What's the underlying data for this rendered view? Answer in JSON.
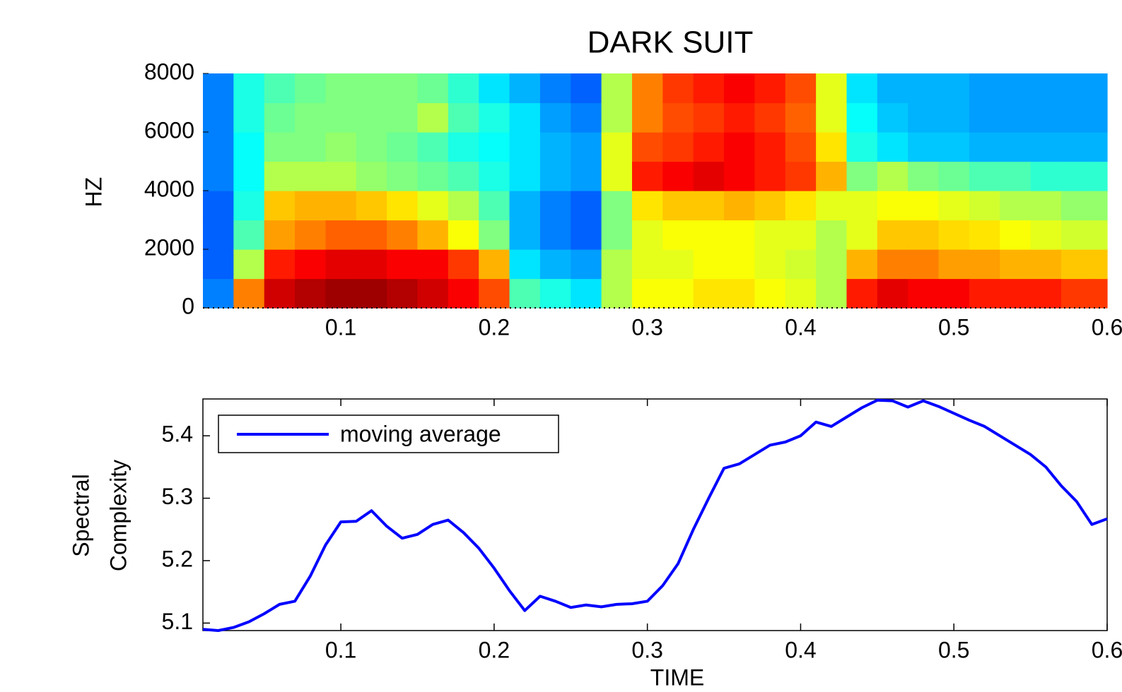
{
  "chart_data": [
    {
      "type": "heatmap",
      "title": "DARK SUIT",
      "ylabel": "HZ",
      "colormap": "jet",
      "zlim": [
        0,
        1
      ],
      "x_bins": [
        0.01,
        0.03,
        0.05,
        0.07,
        0.09,
        0.11,
        0.13,
        0.15,
        0.17,
        0.19,
        0.21,
        0.23,
        0.25,
        0.27,
        0.29,
        0.31,
        0.33,
        0.35,
        0.37,
        0.39,
        0.41,
        0.43,
        0.45,
        0.47,
        0.49,
        0.51,
        0.53,
        0.55,
        0.57,
        0.59,
        0.6
      ],
      "y_bins": [
        0,
        1000,
        2000,
        3000,
        4000,
        5000,
        6000,
        7000,
        8000
      ],
      "z": [
        [
          0.25,
          0.22,
          0.22,
          0.22,
          0.25,
          0.25,
          0.25,
          0.25
        ],
        [
          0.75,
          0.55,
          0.45,
          0.4,
          0.38,
          0.38,
          0.4,
          0.4
        ],
        [
          0.92,
          0.85,
          0.72,
          0.68,
          0.55,
          0.5,
          0.48,
          0.45
        ],
        [
          0.95,
          0.88,
          0.75,
          0.7,
          0.55,
          0.5,
          0.5,
          0.48
        ],
        [
          0.97,
          0.9,
          0.78,
          0.7,
          0.55,
          0.52,
          0.5,
          0.5
        ],
        [
          0.97,
          0.9,
          0.78,
          0.68,
          0.52,
          0.5,
          0.5,
          0.5
        ],
        [
          0.95,
          0.88,
          0.75,
          0.65,
          0.5,
          0.48,
          0.5,
          0.5
        ],
        [
          0.92,
          0.88,
          0.7,
          0.6,
          0.48,
          0.45,
          0.55,
          0.48
        ],
        [
          0.88,
          0.82,
          0.62,
          0.55,
          0.45,
          0.4,
          0.45,
          0.42
        ],
        [
          0.8,
          0.7,
          0.5,
          0.45,
          0.4,
          0.38,
          0.4,
          0.35
        ],
        [
          0.45,
          0.35,
          0.3,
          0.3,
          0.35,
          0.35,
          0.35,
          0.3
        ],
        [
          0.4,
          0.3,
          0.25,
          0.25,
          0.3,
          0.3,
          0.28,
          0.25
        ],
        [
          0.35,
          0.28,
          0.22,
          0.22,
          0.28,
          0.28,
          0.25,
          0.22
        ],
        [
          0.55,
          0.55,
          0.5,
          0.5,
          0.6,
          0.6,
          0.55,
          0.55
        ],
        [
          0.62,
          0.6,
          0.6,
          0.65,
          0.85,
          0.8,
          0.75,
          0.75
        ],
        [
          0.62,
          0.6,
          0.62,
          0.68,
          0.88,
          0.82,
          0.8,
          0.82
        ],
        [
          0.65,
          0.62,
          0.62,
          0.68,
          0.9,
          0.85,
          0.82,
          0.85
        ],
        [
          0.65,
          0.62,
          0.62,
          0.7,
          0.88,
          0.88,
          0.85,
          0.88
        ],
        [
          0.62,
          0.6,
          0.6,
          0.68,
          0.85,
          0.85,
          0.82,
          0.85
        ],
        [
          0.6,
          0.58,
          0.6,
          0.65,
          0.82,
          0.8,
          0.78,
          0.8
        ],
        [
          0.55,
          0.55,
          0.55,
          0.6,
          0.7,
          0.65,
          0.6,
          0.6
        ],
        [
          0.85,
          0.7,
          0.6,
          0.6,
          0.5,
          0.4,
          0.38,
          0.35
        ],
        [
          0.9,
          0.75,
          0.68,
          0.62,
          0.55,
          0.35,
          0.32,
          0.3
        ],
        [
          0.88,
          0.75,
          0.68,
          0.62,
          0.5,
          0.32,
          0.3,
          0.3
        ],
        [
          0.88,
          0.72,
          0.66,
          0.6,
          0.48,
          0.32,
          0.3,
          0.3
        ],
        [
          0.85,
          0.72,
          0.65,
          0.58,
          0.45,
          0.3,
          0.28,
          0.28
        ],
        [
          0.85,
          0.7,
          0.62,
          0.55,
          0.45,
          0.3,
          0.28,
          0.28
        ],
        [
          0.85,
          0.7,
          0.6,
          0.55,
          0.42,
          0.3,
          0.28,
          0.28
        ],
        [
          0.82,
          0.68,
          0.58,
          0.52,
          0.42,
          0.3,
          0.28,
          0.28
        ],
        [
          0.82,
          0.68,
          0.58,
          0.52,
          0.42,
          0.3,
          0.28,
          0.28
        ]
      ],
      "xlim": [
        0.01,
        0.6
      ],
      "ylim": [
        0,
        8000
      ],
      "xticks": [
        0.1,
        0.2,
        0.3,
        0.4,
        0.5,
        0.6
      ],
      "yticks": [
        0,
        2000,
        4000,
        6000,
        8000
      ]
    },
    {
      "type": "line",
      "ylabel": [
        "Spectral",
        "Complexity"
      ],
      "xlabel": "TIME",
      "legend": "upper left",
      "x": [
        0.01,
        0.02,
        0.03,
        0.04,
        0.05,
        0.06,
        0.07,
        0.08,
        0.09,
        0.1,
        0.11,
        0.12,
        0.13,
        0.14,
        0.15,
        0.16,
        0.17,
        0.18,
        0.19,
        0.2,
        0.21,
        0.22,
        0.23,
        0.24,
        0.25,
        0.26,
        0.27,
        0.28,
        0.29,
        0.3,
        0.31,
        0.32,
        0.33,
        0.34,
        0.35,
        0.36,
        0.37,
        0.38,
        0.39,
        0.4,
        0.41,
        0.42,
        0.43,
        0.44,
        0.45,
        0.46,
        0.47,
        0.48,
        0.49,
        0.5,
        0.51,
        0.52,
        0.53,
        0.54,
        0.55,
        0.56,
        0.57,
        0.58,
        0.59,
        0.6
      ],
      "series": [
        {
          "name": "moving average",
          "color": "#0000ff",
          "values": [
            5.09,
            5.088,
            5.093,
            5.102,
            5.115,
            5.13,
            5.135,
            5.175,
            5.225,
            5.262,
            5.263,
            5.28,
            5.255,
            5.236,
            5.242,
            5.258,
            5.265,
            5.245,
            5.22,
            5.188,
            5.152,
            5.12,
            5.143,
            5.135,
            5.125,
            5.129,
            5.126,
            5.13,
            5.131,
            5.135,
            5.16,
            5.195,
            5.25,
            5.3,
            5.348,
            5.355,
            5.37,
            5.385,
            5.39,
            5.4,
            5.422,
            5.415,
            5.43,
            5.445,
            5.457,
            5.456,
            5.446,
            5.456,
            5.447,
            5.436,
            5.425,
            5.415,
            5.4,
            5.385,
            5.37,
            5.35,
            5.32,
            5.295,
            5.258,
            5.267
          ]
        }
      ],
      "xlim": [
        0.01,
        0.6
      ],
      "ylim": [
        5.088,
        5.459
      ],
      "xticks": [
        0.1,
        0.2,
        0.3,
        0.4,
        0.5,
        0.6
      ],
      "yticks": [
        5.1,
        5.2,
        5.3,
        5.4
      ]
    }
  ]
}
